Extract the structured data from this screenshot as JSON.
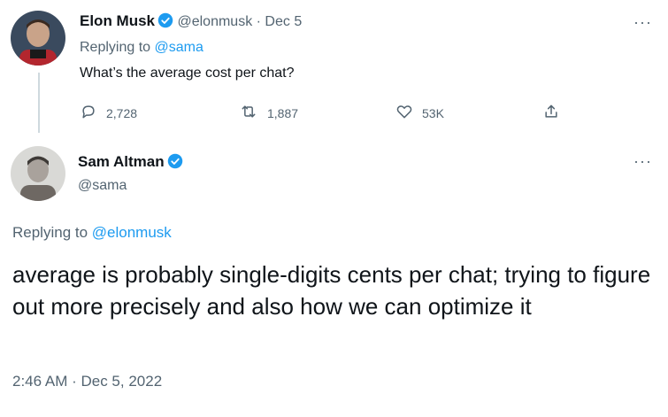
{
  "tweet1": {
    "name": "Elon Musk",
    "handle": "@elonmusk",
    "separator": "·",
    "date": "Dec 5",
    "replying_prefix": "Replying to ",
    "replying_to": "@sama",
    "text": "What’s the average cost per chat?",
    "replies": "2,728",
    "retweets": "1,887",
    "likes": "53K"
  },
  "tweet2": {
    "name": "Sam Altman",
    "handle": "@sama",
    "replying_prefix": "Replying to ",
    "replying_to": "@elonmusk",
    "text": "average is probably single-digits cents per chat; trying to figure out more precisely and also how we can optimize it",
    "timestamp": "2:46 AM · Dec 5, 2022"
  },
  "icons": {
    "verified": "verified-badge-icon",
    "reply": "reply-icon",
    "retweet": "retweet-icon",
    "like": "heart-icon",
    "share": "share-icon",
    "more": "more-options-icon"
  },
  "colors": {
    "text": "#0f1419",
    "muted": "#536471",
    "link": "#1d9bf0",
    "verified": "#1d9bf0",
    "thread_line": "#cfd9de"
  }
}
